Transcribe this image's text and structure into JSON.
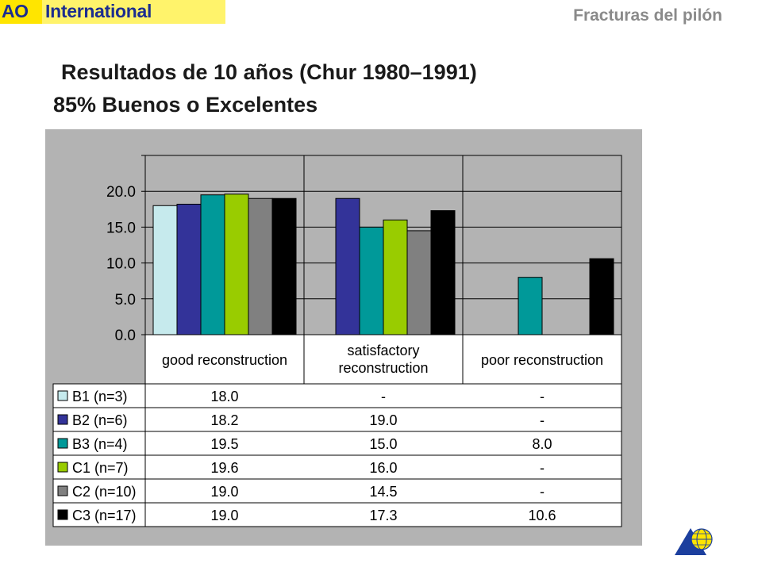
{
  "header": {
    "logo_ao": "AO",
    "logo_international": "International",
    "section_title": "Fracturas del pilón"
  },
  "slide": {
    "title_line1": "Resultados de 10 años (Chur 1980–1991)",
    "title_line2": "85% Buenos o Excelentes"
  },
  "colors": {
    "plot_background": "#b3b3b3",
    "B1": "#c6eaed",
    "B2": "#333399",
    "B3": "#009999",
    "C1": "#99cc00",
    "C2": "#808080",
    "C3": "#000000"
  },
  "chart_data": {
    "type": "bar",
    "categories": [
      "good reconstruction",
      "satisfactory reconstruction",
      "poor reconstruction"
    ],
    "category_label_lines": [
      [
        "good reconstruction"
      ],
      [
        "satisfactory",
        "reconstruction"
      ],
      [
        "poor reconstruction"
      ]
    ],
    "ylim": [
      0,
      25
    ],
    "yticks": [
      "0.0",
      "5.0",
      "10.0",
      "15.0",
      "20.0"
    ],
    "ytick_values": [
      0,
      5,
      10,
      15,
      20
    ],
    "grid": "vertical separators between categories",
    "legend": "data table below chart",
    "series": [
      {
        "name": "B1 (n=3)",
        "color": "#c6eaed",
        "values": [
          18.0,
          null,
          null
        ],
        "labels": [
          "18.0",
          "-",
          "-"
        ]
      },
      {
        "name": "B2 (n=6)",
        "color": "#333399",
        "values": [
          18.2,
          19.0,
          null
        ],
        "labels": [
          "18.2",
          "19.0",
          "-"
        ]
      },
      {
        "name": "B3 (n=4)",
        "color": "#009999",
        "values": [
          19.5,
          15.0,
          8.0
        ],
        "labels": [
          "19.5",
          "15.0",
          "8.0"
        ]
      },
      {
        "name": "C1 (n=7)",
        "color": "#99cc00",
        "values": [
          19.6,
          16.0,
          null
        ],
        "labels": [
          "19.6",
          "16.0",
          "-"
        ]
      },
      {
        "name": "C2 (n=10)",
        "color": "#808080",
        "values": [
          19.0,
          14.5,
          null
        ],
        "labels": [
          "19.0",
          "14.5",
          "-"
        ]
      },
      {
        "name": "C3 (n=17)",
        "color": "#000000",
        "values": [
          19.0,
          17.3,
          10.6
        ],
        "labels": [
          "19.0",
          "17.3",
          "10.6"
        ]
      }
    ]
  }
}
